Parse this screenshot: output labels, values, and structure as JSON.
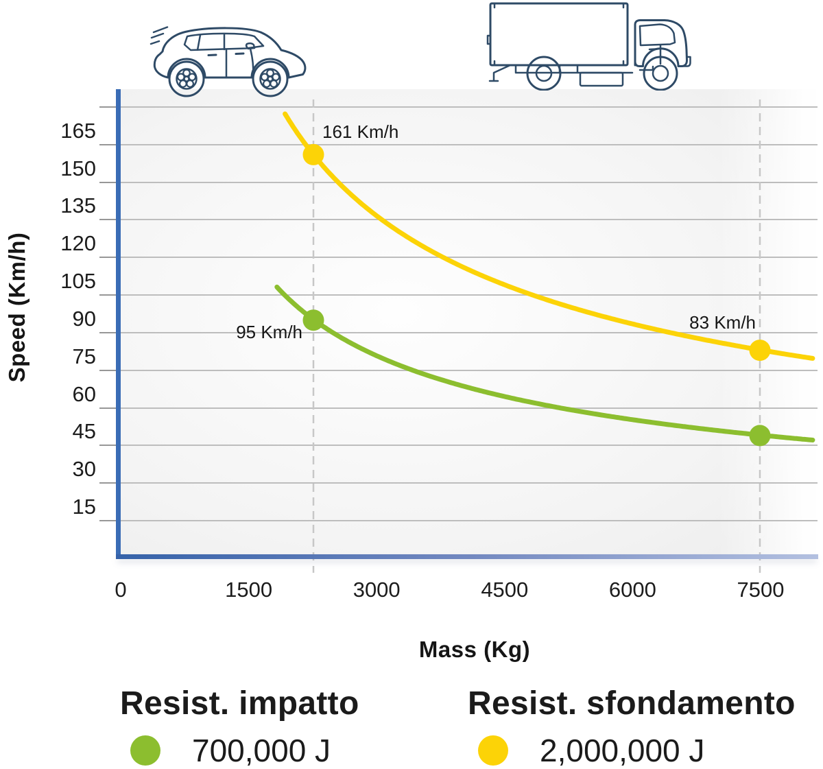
{
  "axes": {
    "y_title": "Speed (Km/h)",
    "x_title": "Mass (Kg)",
    "y_tick_labels": [
      165,
      150,
      135,
      120,
      105,
      90,
      75,
      60,
      45,
      30,
      15
    ],
    "x_tick_labels": [
      0,
      1500,
      3000,
      4500,
      6000,
      7500
    ]
  },
  "legend": {
    "items": [
      {
        "title": "Resist. impatto",
        "value": "700,000 J",
        "color": "#8cbe2f"
      },
      {
        "title": "Resist. sfondamento",
        "value": "2,000,000 J",
        "color": "#fcd307"
      }
    ]
  },
  "colors": {
    "impact_green": "#8cbe2f",
    "breakthrough_yellow": "#fcd307",
    "axis_blue": "#3a6cb5",
    "icon_navy": "#2e4a66",
    "gridline": "#bdbdbd",
    "tick": "#979797",
    "dashed_line": "#c7c7c7",
    "text": "#1c1c1c"
  },
  "chart_data": {
    "type": "line",
    "xlabel": "Mass (Kg)",
    "ylabel": "Speed (Km/h)",
    "xlim": [
      0,
      8200
    ],
    "ylim": [
      0,
      187
    ],
    "x_ticks": [
      0,
      1500,
      3000,
      4500,
      6000,
      7500
    ],
    "y_ticks": [
      15,
      30,
      45,
      60,
      75,
      90,
      105,
      120,
      135,
      150,
      165
    ],
    "y_grid_step": 15,
    "y_grid_max": 180,
    "grid": true,
    "legend_position": "bottom",
    "reference_lines_mass_kg": [
      2000,
      7500
    ],
    "series": [
      {
        "name": "Resist. impatto",
        "energy_joules": 700000,
        "color": "#8cbe2f",
        "curve": "speed_kmh = 3.6 * sqrt(2 * energy_joules / mass_kg)",
        "draw_mass_range_kg": [
          1550,
          8150
        ],
        "points": [
          {
            "mass_kg": 2000,
            "speed_kmh": 95,
            "label": "95 Km/h",
            "label_side": "left-down"
          },
          {
            "mass_kg": 7500,
            "speed_kmh": 49,
            "label": null,
            "label_side": null
          }
        ]
      },
      {
        "name": "Resist. sfondamento",
        "energy_joules": 2000000,
        "color": "#fcd307",
        "curve": "speed_kmh = 3.6 * sqrt(2 * energy_joules / mass_kg)",
        "draw_mass_range_kg": [
          1650,
          8150
        ],
        "points": [
          {
            "mass_kg": 2000,
            "speed_kmh": 161,
            "label": "161 Km/h",
            "label_side": "right-up"
          },
          {
            "mass_kg": 7500,
            "speed_kmh": 83,
            "label": "83 Km/h",
            "label_side": "left-up"
          }
        ]
      }
    ]
  }
}
